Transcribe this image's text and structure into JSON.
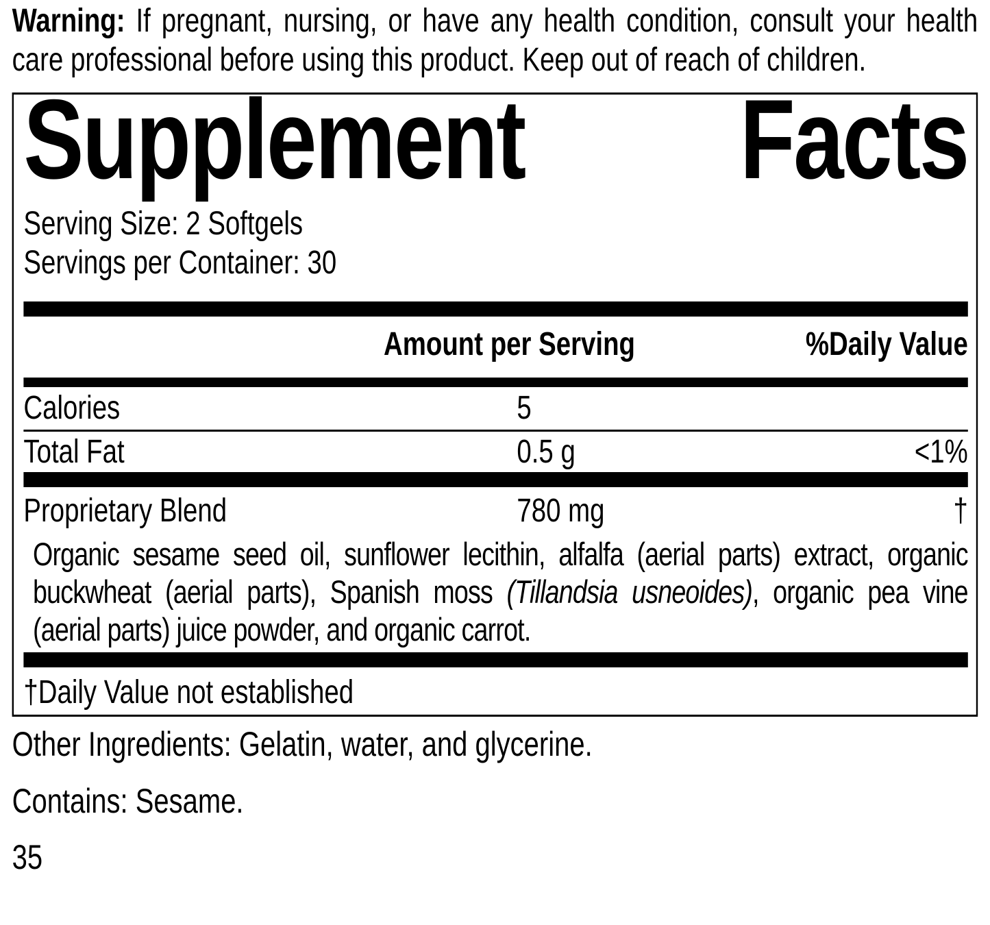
{
  "colors": {
    "text": "#000000",
    "background": "#ffffff",
    "rule": "#000000"
  },
  "warning": {
    "label": "Warning:",
    "text": "If pregnant, nursing, or have any health condition, consult your health care professional before using this product. Keep out of reach of children."
  },
  "panel": {
    "title_words": [
      "Supplement",
      "Facts"
    ],
    "serving_size": "Serving Size: 2 Softgels",
    "servings_per_container": "Servings per Container: 30",
    "columns": {
      "amount": "Amount per Serving",
      "daily_value": "%Daily Value"
    },
    "rows": [
      {
        "name": "Calories",
        "amount": "5",
        "dv": ""
      },
      {
        "name": "Total Fat",
        "amount": "0.5 g",
        "dv": "<1%"
      },
      {
        "name": "Proprietary Blend",
        "amount": "780 mg",
        "dv": "†"
      }
    ],
    "blend": {
      "part1": "Organic sesame seed oil, sunflower lecithin, alfalfa (aerial parts) extract, organic buckwheat (aerial parts), Spanish moss",
      "latin_italic": "(Tillandsia usneoides)",
      "part3": ", organic pea vine (aerial parts) juice powder, and organic carrot."
    },
    "footnote": "†Daily Value not established"
  },
  "other_ingredients": "Other Ingredients: Gelatin, water, and glycerine.",
  "contains": "Contains: Sesame.",
  "page_number": "35"
}
